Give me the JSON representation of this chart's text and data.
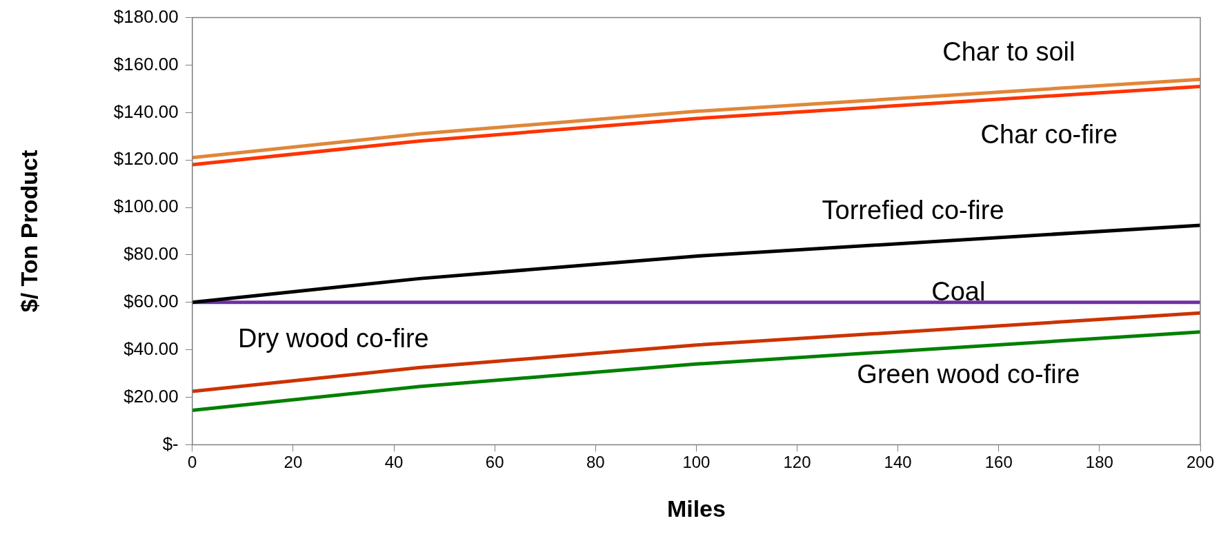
{
  "chart_data": {
    "type": "line",
    "xlabel": "Miles",
    "ylabel": "$/ Ton Product",
    "x": [
      0,
      45,
      100,
      200
    ],
    "series": [
      {
        "name": "Char to soil",
        "color": "#e0873a",
        "values": [
          121,
          131,
          140.5,
          154
        ]
      },
      {
        "name": "Char co-fire",
        "color": "#ff3300",
        "values": [
          118,
          128,
          137.5,
          151
        ]
      },
      {
        "name": "Torrefied co-fire",
        "color": "#000000",
        "values": [
          60,
          70,
          79.5,
          92.5
        ]
      },
      {
        "name": "Coal",
        "color": "#7030a0",
        "values": [
          60,
          60,
          60,
          60
        ]
      },
      {
        "name": "Dry wood co-fire",
        "color": "#cc3300",
        "values": [
          22.5,
          32.5,
          42,
          55.5
        ]
      },
      {
        "name": "Green wood co-fire",
        "color": "#008000",
        "values": [
          14.5,
          24.5,
          34,
          47.5
        ]
      }
    ],
    "xlim": [
      0,
      200
    ],
    "xticks": [
      0,
      20,
      40,
      60,
      80,
      100,
      120,
      140,
      160,
      180,
      200
    ],
    "ylim": [
      0,
      180
    ],
    "yticks": [
      {
        "value": 0,
        "label": "$-"
      },
      {
        "value": 20,
        "label": "$20.00"
      },
      {
        "value": 40,
        "label": "$40.00"
      },
      {
        "value": 60,
        "label": "$60.00"
      },
      {
        "value": 80,
        "label": "$80.00"
      },
      {
        "value": 100,
        "label": "$100.00"
      },
      {
        "value": 120,
        "label": "$120.00"
      },
      {
        "value": 140,
        "label": "$140.00"
      },
      {
        "value": 160,
        "label": "$160.00"
      },
      {
        "value": 180,
        "label": "$180.00"
      }
    ],
    "grid": false,
    "legend": false,
    "marker": "none",
    "line_style": "solid"
  }
}
